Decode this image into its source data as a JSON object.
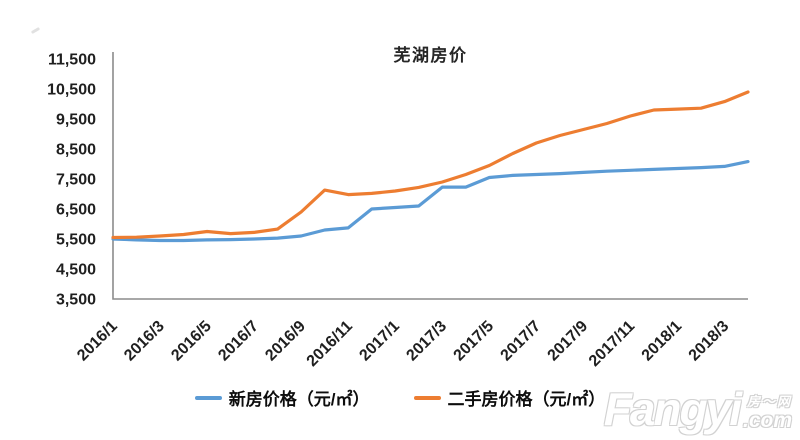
{
  "chart_data": {
    "type": "line",
    "title": "芜湖房价",
    "xlabel": "",
    "ylabel": "",
    "x": [
      "2016/1",
      "2016/2",
      "2016/3",
      "2016/4",
      "2016/5",
      "2016/6",
      "2016/7",
      "2016/8",
      "2016/9",
      "2016/10",
      "2016/11",
      "2016/12",
      "2017/1",
      "2017/2",
      "2017/3",
      "2017/4",
      "2017/5",
      "2017/6",
      "2017/7",
      "2017/8",
      "2017/9",
      "2017/10",
      "2017/11",
      "2017/12",
      "2018/1",
      "2018/2",
      "2018/3",
      "2018/4"
    ],
    "x_tick_step": 2,
    "x_tick_labels": [
      "2016/1",
      "2016/3",
      "2016/5",
      "2016/7",
      "2016/9",
      "2016/11",
      "2017/1",
      "2017/3",
      "2017/5",
      "2017/7",
      "2017/9",
      "2017/11",
      "2018/1",
      "2018/3"
    ],
    "ylim": [
      3500,
      11500
    ],
    "ytick_step": 1000,
    "ytick_labels": [
      "11,500",
      "10,500",
      "9,500",
      "8,500",
      "7,500",
      "6,500",
      "5,500",
      "4,500",
      "3,500"
    ],
    "grid": false,
    "legend_position": "bottom",
    "axis_color": "#8c8c8c",
    "text_color": "#1f1f1f",
    "series": [
      {
        "name": "新房价格（元/㎡）",
        "color": "#5B9BD5",
        "values": [
          5500,
          5470,
          5450,
          5450,
          5470,
          5480,
          5500,
          5530,
          5600,
          5800,
          5870,
          6500,
          6550,
          6600,
          7230,
          7230,
          7550,
          7620,
          7650,
          7680,
          7720,
          7760,
          7790,
          7820,
          7850,
          7880,
          7920,
          8080
        ]
      },
      {
        "name": "二手房价格（元/㎡）",
        "color": "#ED7D31",
        "values": [
          5550,
          5560,
          5600,
          5650,
          5750,
          5680,
          5720,
          5830,
          6400,
          7130,
          6980,
          7020,
          7100,
          7220,
          7400,
          7650,
          7950,
          8350,
          8700,
          8950,
          9150,
          9350,
          9600,
          9800,
          9830,
          9860,
          10080,
          10400
        ]
      }
    ]
  },
  "watermark": {
    "brand": "Fangyi",
    "tag": "房～网",
    "suffix": ".com"
  }
}
